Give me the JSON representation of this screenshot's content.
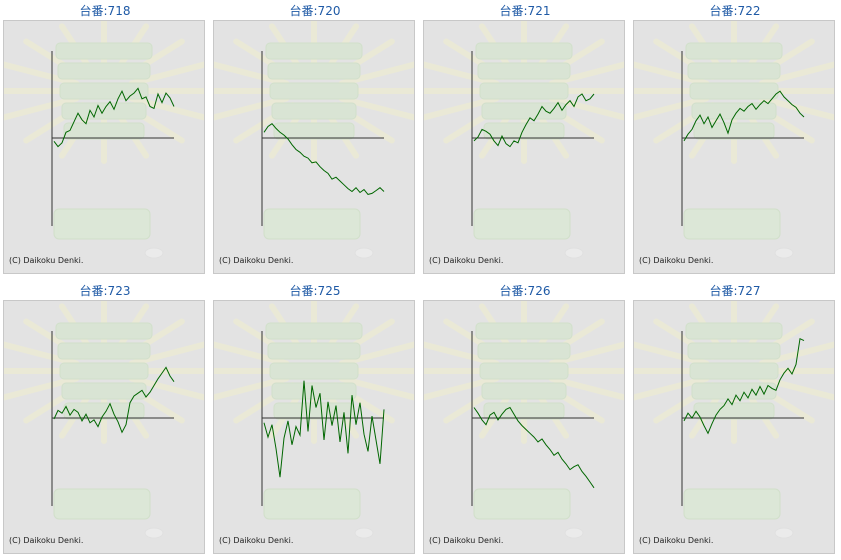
{
  "colors": {
    "line": "#006600",
    "axis": "#333333",
    "title": "#1f5aa6",
    "panel_bg": "#e3e3e3"
  },
  "chart_data": [
    {
      "type": "line",
      "title": "台番:718",
      "copyright": "(C) Daikoku Denki.",
      "x": [
        0,
        8,
        16,
        24,
        32,
        40,
        48,
        56,
        64,
        72,
        80,
        88,
        96,
        104,
        112,
        120,
        128,
        136,
        144,
        152,
        160,
        168,
        176,
        184,
        192,
        200,
        208,
        216,
        224,
        232,
        240
      ],
      "y": [
        -350,
        -900,
        -500,
        600,
        800,
        1700,
        2600,
        1900,
        1500,
        2900,
        2200,
        3400,
        2600,
        3300,
        3800,
        3000,
        4100,
        4900,
        3900,
        4400,
        4700,
        5200,
        4100,
        4300,
        3300,
        3100,
        4600,
        3700,
        4700,
        4200,
        3300
      ]
    },
    {
      "type": "line",
      "title": "台番:720",
      "copyright": "(C) Daikoku Denki.",
      "x": [
        0,
        8,
        16,
        24,
        32,
        40,
        48,
        56,
        64,
        72,
        80,
        88,
        96,
        104,
        112,
        120,
        128,
        136,
        144,
        152,
        160,
        168,
        176,
        184,
        192,
        200,
        208,
        216,
        224,
        232,
        240
      ],
      "y": [
        600,
        1200,
        1500,
        1000,
        600,
        300,
        -100,
        -700,
        -1200,
        -1500,
        -1900,
        -2100,
        -2600,
        -2500,
        -3000,
        -3400,
        -3700,
        -4300,
        -4100,
        -4500,
        -4900,
        -5300,
        -5600,
        -5200,
        -5700,
        -5400,
        -5900,
        -5800,
        -5500,
        -5200,
        -5600
      ]
    },
    {
      "type": "line",
      "title": "台番:721",
      "copyright": "(C) Daikoku Denki.",
      "x": [
        0,
        8,
        16,
        24,
        32,
        40,
        48,
        56,
        64,
        72,
        80,
        88,
        96,
        104,
        112,
        120,
        128,
        136,
        144,
        152,
        160,
        168,
        176,
        184,
        192,
        200,
        208,
        216,
        224,
        232,
        240
      ],
      "y": [
        -300,
        100,
        900,
        700,
        400,
        -300,
        -800,
        200,
        -600,
        -900,
        -300,
        -500,
        600,
        1400,
        2100,
        1800,
        2500,
        3300,
        2800,
        2600,
        3100,
        3700,
        2900,
        3500,
        3900,
        3300,
        4300,
        4600,
        3900,
        4100,
        4600
      ]
    },
    {
      "type": "line",
      "title": "台番:722",
      "copyright": "(C) Daikoku Denki.",
      "x": [
        0,
        8,
        16,
        24,
        32,
        40,
        48,
        56,
        64,
        72,
        80,
        88,
        96,
        104,
        112,
        120,
        128,
        136,
        144,
        152,
        160,
        168,
        176,
        184,
        192,
        200,
        208,
        216,
        224,
        232,
        240
      ],
      "y": [
        -300,
        400,
        900,
        1800,
        2400,
        1500,
        2200,
        1100,
        1800,
        2500,
        1600,
        500,
        1900,
        2600,
        3100,
        2800,
        3300,
        3600,
        3000,
        3500,
        3900,
        3600,
        4100,
        4600,
        4900,
        4300,
        3900,
        3500,
        3200,
        2600,
        2200
      ]
    },
    {
      "type": "line",
      "title": "台番:723",
      "copyright": "(C) Daikoku Denki.",
      "x": [
        0,
        8,
        16,
        24,
        32,
        40,
        48,
        56,
        64,
        72,
        80,
        88,
        96,
        104,
        112,
        120,
        128,
        136,
        144,
        152,
        160,
        168,
        176,
        184,
        192,
        200,
        208,
        216,
        224,
        232,
        240
      ],
      "y": [
        -100,
        800,
        500,
        1200,
        300,
        900,
        600,
        -300,
        400,
        -500,
        -200,
        -900,
        100,
        700,
        1500,
        400,
        -400,
        -1500,
        -700,
        1600,
        2300,
        2600,
        2900,
        2200,
        2700,
        3400,
        4100,
        4700,
        5300,
        4400,
        3800
      ]
    },
    {
      "type": "line",
      "title": "台番:725",
      "copyright": "(C) Daikoku Denki.",
      "x": [
        0,
        8,
        16,
        24,
        32,
        40,
        48,
        56,
        64,
        72,
        80,
        88,
        96,
        104,
        112,
        120,
        128,
        136,
        144,
        152,
        160,
        168,
        176,
        184,
        192,
        200,
        208,
        216,
        224,
        232,
        240
      ],
      "y": [
        -500,
        -2000,
        -700,
        -3200,
        -6200,
        -2100,
        -300,
        -2800,
        -900,
        -1800,
        3900,
        -1400,
        3400,
        1100,
        2600,
        -2300,
        1700,
        -800,
        1300,
        -2500,
        600,
        -3700,
        2400,
        -700,
        1600,
        -1700,
        -3500,
        200,
        -2300,
        -4800,
        900
      ]
    },
    {
      "type": "line",
      "title": "台番:726",
      "copyright": "(C) Daikoku Denki.",
      "x": [
        0,
        8,
        16,
        24,
        32,
        40,
        48,
        56,
        64,
        72,
        80,
        88,
        96,
        104,
        112,
        120,
        128,
        136,
        144,
        152,
        160,
        168,
        176,
        184,
        192,
        200,
        208,
        216,
        224,
        232,
        240
      ],
      "y": [
        1100,
        500,
        -200,
        -700,
        300,
        600,
        -200,
        400,
        900,
        1100,
        400,
        -300,
        -800,
        -1200,
        -1600,
        -2000,
        -2500,
        -2200,
        -2800,
        -3300,
        -3900,
        -3600,
        -4300,
        -4800,
        -5400,
        -5100,
        -4900,
        -5600,
        -6100,
        -6700,
        -7300
      ]
    },
    {
      "type": "line",
      "title": "台番:727",
      "copyright": "(C) Daikoku Denki.",
      "x": [
        0,
        8,
        16,
        24,
        32,
        40,
        48,
        56,
        64,
        72,
        80,
        88,
        96,
        104,
        112,
        120,
        128,
        136,
        144,
        152,
        160,
        168,
        176,
        184,
        192,
        200,
        208,
        216,
        224,
        232,
        240
      ],
      "y": [
        -300,
        500,
        0,
        700,
        100,
        -800,
        -1600,
        -600,
        300,
        900,
        1300,
        2000,
        1400,
        2400,
        1800,
        2700,
        2100,
        3000,
        2400,
        3300,
        2500,
        3400,
        3100,
        2900,
        4000,
        4700,
        5200,
        4600,
        5600,
        8300,
        8100
      ]
    }
  ]
}
